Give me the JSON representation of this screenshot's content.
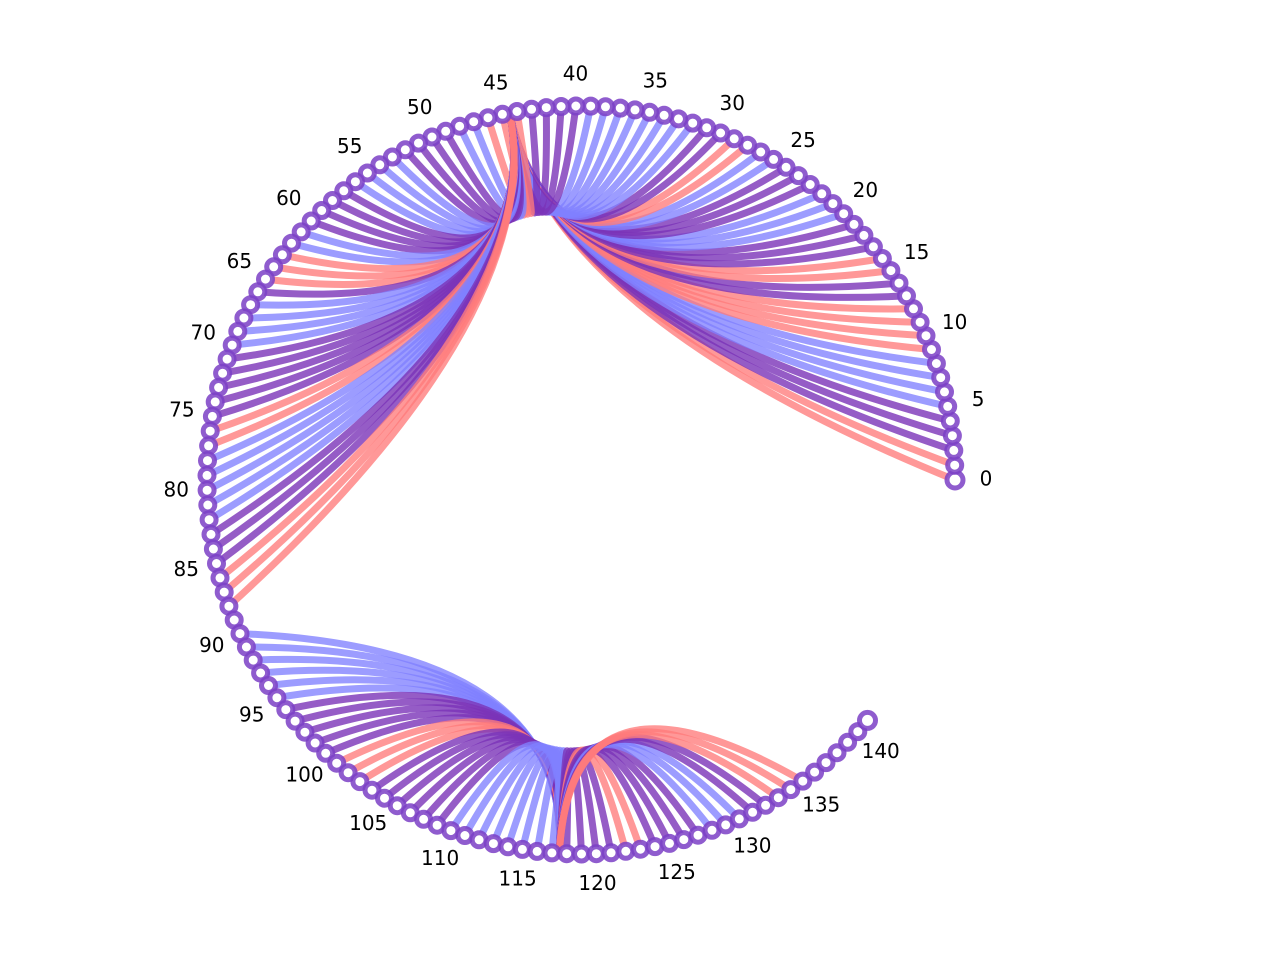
{
  "chart_data": {
    "type": "arc-chord",
    "title": "",
    "node_count": 142,
    "angle_span_degrees": [
      0,
      320
    ],
    "tick_step": 5,
    "tick_labels": [
      "0",
      "5",
      "10",
      "15",
      "20",
      "25",
      "30",
      "35",
      "40",
      "45",
      "50",
      "55",
      "60",
      "65",
      "70",
      "75",
      "80",
      "85",
      "90",
      "95",
      "100",
      "105",
      "110",
      "115",
      "120",
      "125",
      "130",
      "135",
      "140"
    ],
    "colors": {
      "node_stroke": "#7b3fc6",
      "node_fill": "#ffffff",
      "blue": "#8080ff",
      "red": "#ff7b7b",
      "purple": "#7a33b8"
    },
    "hubs": [
      {
        "target": 44.5,
        "sources": [
          0,
          1,
          2,
          3,
          4,
          5,
          6,
          7,
          8,
          9,
          10,
          11,
          12,
          13,
          14,
          15,
          16,
          17,
          18,
          19,
          20,
          21,
          22,
          23,
          24,
          25,
          26,
          27,
          28,
          29,
          30,
          31,
          32,
          33,
          34,
          35,
          36,
          37,
          38,
          39,
          40,
          41,
          42,
          43,
          44,
          45,
          46,
          47,
          48,
          49,
          50,
          51,
          52,
          53,
          54,
          55,
          56,
          57,
          58,
          59,
          60,
          61,
          62,
          63,
          64,
          65,
          66,
          67,
          68,
          69,
          70,
          71,
          72,
          73,
          74,
          75,
          76,
          77,
          78,
          79,
          80,
          81,
          82,
          83,
          84,
          85,
          86,
          87,
          88
        ],
        "colors": [
          "red",
          "red",
          "purple",
          "purple",
          "purple",
          "blue",
          "blue",
          "blue",
          "blue",
          "red",
          "red",
          "red",
          "red",
          "purple",
          "purple",
          "red",
          "red",
          "purple",
          "purple",
          "purple",
          "blue",
          "blue",
          "blue",
          "purple",
          "purple",
          "purple",
          "blue",
          "blue",
          "red",
          "red",
          "purple",
          "purple",
          "blue",
          "blue",
          "blue",
          "blue",
          "blue",
          "blue",
          "blue",
          "blue",
          "purple",
          "purple",
          "purple",
          "purple",
          "red",
          "red",
          "red",
          "blue",
          "blue",
          "purple",
          "purple",
          "purple",
          "purple",
          "blue",
          "blue",
          "blue",
          "blue",
          "purple",
          "purple",
          "purple",
          "purple",
          "blue",
          "blue",
          "red",
          "red",
          "red",
          "purple",
          "blue",
          "blue",
          "blue",
          "blue",
          "purple",
          "purple",
          "purple",
          "purple",
          "purple",
          "red",
          "red",
          "blue",
          "blue",
          "blue",
          "blue",
          "blue",
          "purple",
          "purple",
          "purple",
          "red",
          "red",
          "red"
        ]
      },
      {
        "target": 117.5,
        "sources": [
          90,
          91,
          92,
          93,
          94,
          95,
          96,
          97,
          98,
          99,
          100,
          101,
          102,
          103,
          104,
          105,
          106,
          107,
          108,
          109,
          110,
          111,
          112,
          113,
          114,
          115,
          116,
          117,
          118,
          119,
          120,
          121,
          122,
          123,
          124,
          125,
          126,
          127,
          128,
          129,
          130,
          131,
          132,
          133,
          134,
          135
        ],
        "colors": [
          "blue",
          "blue",
          "blue",
          "blue",
          "blue",
          "blue",
          "purple",
          "purple",
          "purple",
          "purple",
          "purple",
          "red",
          "red",
          "red",
          "purple",
          "purple",
          "purple",
          "purple",
          "purple",
          "purple",
          "blue",
          "blue",
          "blue",
          "blue",
          "blue",
          "blue",
          "blue",
          "blue",
          "purple",
          "purple",
          "purple",
          "purple",
          "red",
          "red",
          "purple",
          "purple",
          "purple",
          "purple",
          "blue",
          "blue",
          "blue",
          "purple",
          "purple",
          "red",
          "red",
          "red"
        ]
      }
    ]
  }
}
